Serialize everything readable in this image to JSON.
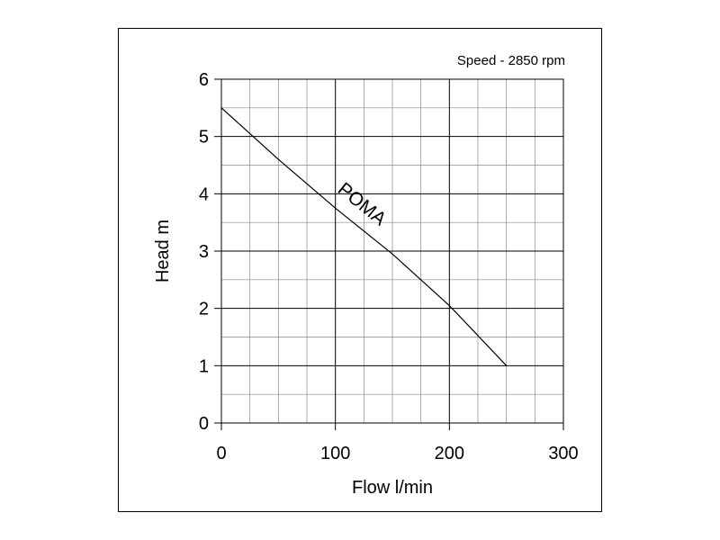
{
  "chart_data": {
    "type": "line",
    "title": "",
    "annotation": "Speed - 2850 rpm",
    "xlabel": "Flow l/min",
    "ylabel": "Head m",
    "xlim": [
      0,
      300
    ],
    "ylim": [
      0,
      6
    ],
    "x_ticks": [
      "0",
      "100",
      "200",
      "300"
    ],
    "y_ticks": [
      "0",
      "1",
      "2",
      "3",
      "4",
      "5",
      "6"
    ],
    "grid": true,
    "series": [
      {
        "name": "POMA",
        "x": [
          0,
          50,
          100,
          150,
          200,
          250
        ],
        "y": [
          5.5,
          4.6,
          3.75,
          2.95,
          2.05,
          1.0
        ]
      }
    ]
  }
}
